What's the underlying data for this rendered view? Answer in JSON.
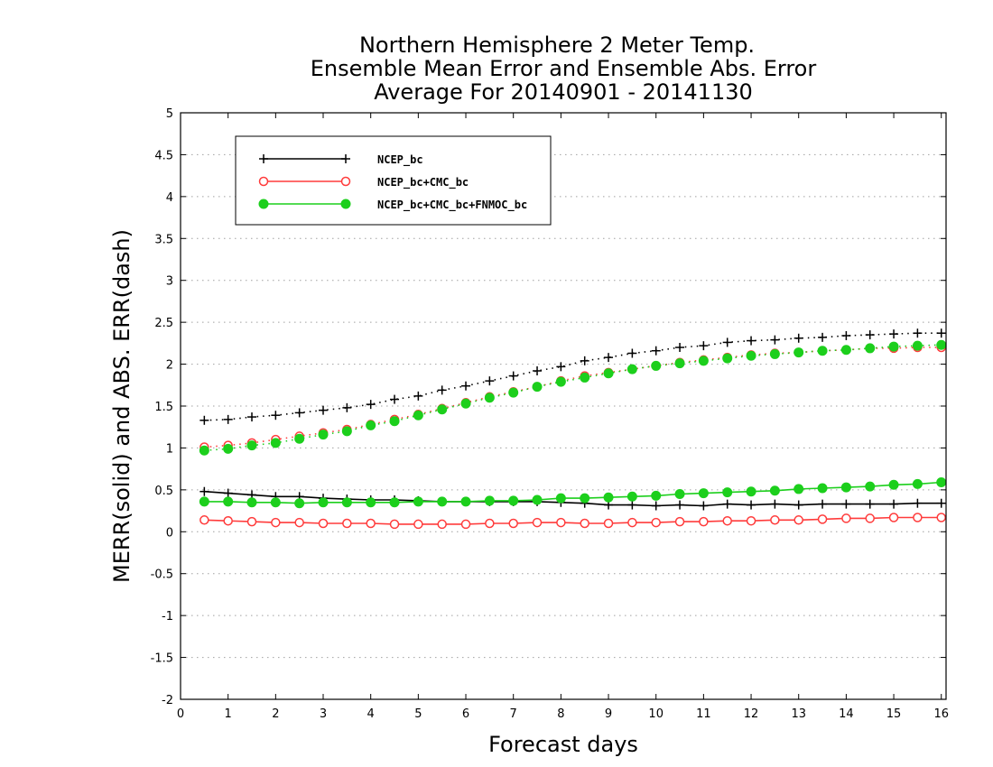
{
  "colors": {
    "NCEP_bc": "#000000",
    "NCEP_bc+CMC_bc": "#ff3b3b",
    "NCEP_bc+CMC_bc+FNMOC_bc": "#1ccf1c",
    "grid": "#a0a0a0"
  },
  "chart_data": {
    "type": "line",
    "title": [
      "Northern Hemisphere 2 Meter Temp.",
      "Ensemble Mean Error and Ensemble Abs. Error",
      "Average For 20140901 - 20141130"
    ],
    "xlabel": "Forecast days",
    "ylabel": "MERR(solid) and ABS. ERR(dash)",
    "xlim": [
      0,
      16.1
    ],
    "ylim": [
      -2,
      5
    ],
    "xticks": [
      "0",
      "1",
      "2",
      "3",
      "4",
      "5",
      "6",
      "7",
      "8",
      "9",
      "10",
      "11",
      "12",
      "13",
      "14",
      "15",
      "16"
    ],
    "yticks": [
      "5",
      "4.5",
      "4",
      "3.5",
      "3",
      "2.5",
      "2",
      "1.5",
      "1",
      "0.5",
      "0",
      "-0.5",
      "-1",
      "-1.5",
      "-2"
    ],
    "grid": "horizontal dotted",
    "legend_position": "top-left",
    "x": [
      0.5,
      1.0,
      1.5,
      2.0,
      2.5,
      3.0,
      3.5,
      4.0,
      4.5,
      5.0,
      5.5,
      6.0,
      6.5,
      7.0,
      7.5,
      8.0,
      8.5,
      9.0,
      9.5,
      10.0,
      10.5,
      11.0,
      11.5,
      12.0,
      12.5,
      13.0,
      13.5,
      14.0,
      14.5,
      15.0,
      15.5,
      16.0
    ],
    "series": [
      {
        "name": "NCEP_bc",
        "marker": "plus",
        "merr_solid": [
          0.48,
          0.46,
          0.44,
          0.42,
          0.42,
          0.4,
          0.39,
          0.38,
          0.38,
          0.37,
          0.36,
          0.36,
          0.36,
          0.36,
          0.36,
          0.35,
          0.34,
          0.32,
          0.32,
          0.31,
          0.32,
          0.31,
          0.33,
          0.32,
          0.33,
          0.32,
          0.33,
          0.33,
          0.33,
          0.33,
          0.34,
          0.34
        ],
        "abs_dash": [
          1.33,
          1.34,
          1.37,
          1.39,
          1.42,
          1.45,
          1.48,
          1.52,
          1.58,
          1.62,
          1.69,
          1.74,
          1.8,
          1.86,
          1.92,
          1.97,
          2.04,
          2.08,
          2.13,
          2.16,
          2.2,
          2.22,
          2.26,
          2.28,
          2.29,
          2.31,
          2.32,
          2.34,
          2.35,
          2.36,
          2.37,
          2.37
        ]
      },
      {
        "name": "NCEP_bc+CMC_bc",
        "marker": "open-circle",
        "merr_solid": [
          0.14,
          0.13,
          0.12,
          0.11,
          0.11,
          0.1,
          0.1,
          0.1,
          0.09,
          0.09,
          0.09,
          0.09,
          0.1,
          0.1,
          0.11,
          0.11,
          0.1,
          0.1,
          0.11,
          0.11,
          0.12,
          0.12,
          0.13,
          0.13,
          0.14,
          0.14,
          0.15,
          0.16,
          0.16,
          0.17,
          0.17,
          0.17
        ],
        "abs_dash": [
          1.01,
          1.03,
          1.06,
          1.1,
          1.14,
          1.18,
          1.22,
          1.28,
          1.34,
          1.4,
          1.47,
          1.54,
          1.61,
          1.67,
          1.73,
          1.8,
          1.86,
          1.9,
          1.94,
          1.98,
          2.02,
          2.05,
          2.08,
          2.11,
          2.13,
          2.14,
          2.16,
          2.17,
          2.19,
          2.19,
          2.2,
          2.2
        ]
      },
      {
        "name": "NCEP_bc+CMC_bc+FNMOC_bc",
        "marker": "filled-circle",
        "merr_solid": [
          0.36,
          0.36,
          0.35,
          0.35,
          0.34,
          0.35,
          0.35,
          0.35,
          0.35,
          0.36,
          0.36,
          0.36,
          0.37,
          0.37,
          0.38,
          0.4,
          0.4,
          0.41,
          0.42,
          0.43,
          0.45,
          0.46,
          0.47,
          0.48,
          0.49,
          0.51,
          0.52,
          0.53,
          0.54,
          0.56,
          0.57,
          0.59
        ],
        "abs_dash": [
          0.97,
          0.99,
          1.03,
          1.06,
          1.11,
          1.16,
          1.2,
          1.27,
          1.32,
          1.39,
          1.46,
          1.53,
          1.6,
          1.66,
          1.73,
          1.79,
          1.84,
          1.89,
          1.94,
          1.98,
          2.01,
          2.04,
          2.07,
          2.1,
          2.12,
          2.14,
          2.16,
          2.17,
          2.19,
          2.21,
          2.22,
          2.23
        ]
      }
    ]
  }
}
